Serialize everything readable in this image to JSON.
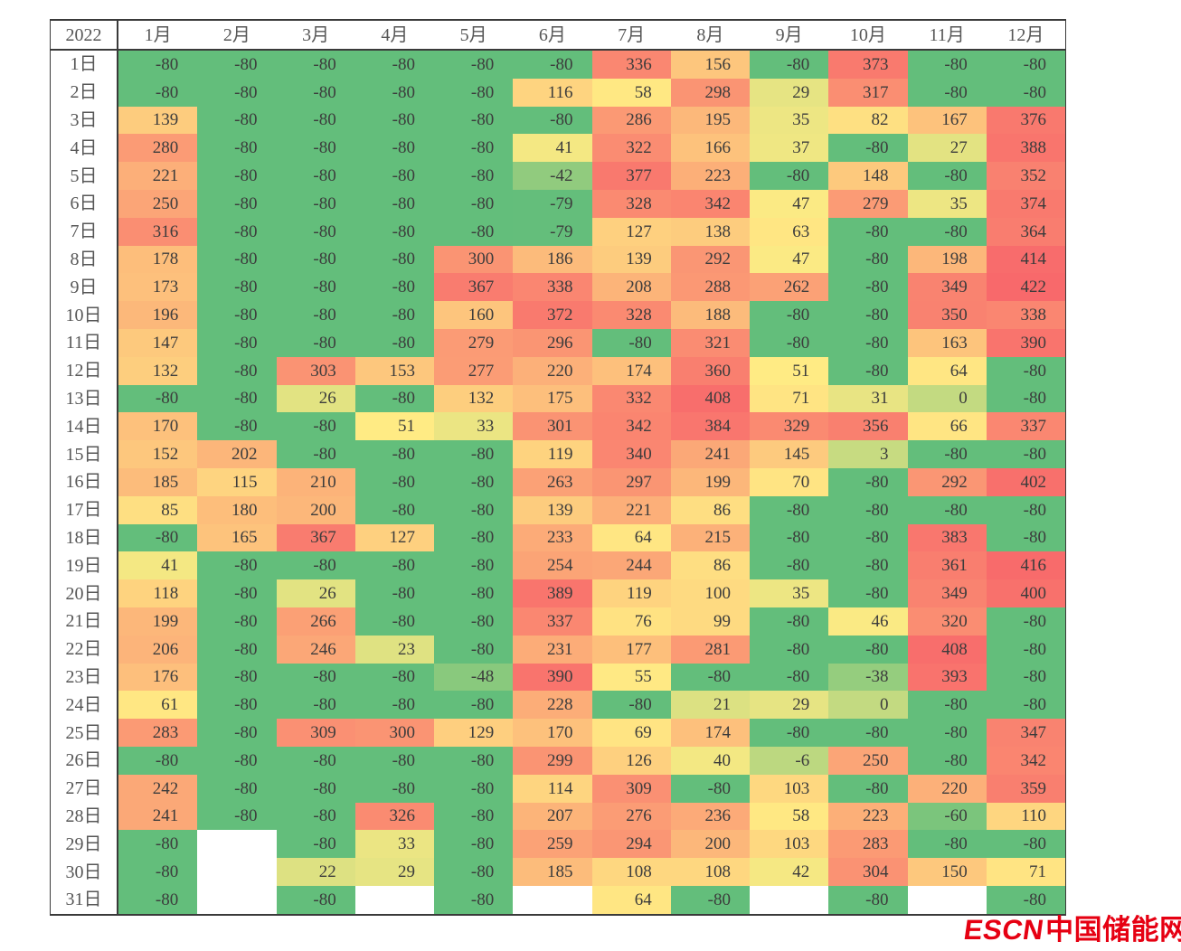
{
  "colors": {
    "scale_min_color": "#63be7b",
    "scale_mid_color": "#ffeb84",
    "scale_max_color": "#f8696b",
    "scale_min": -80,
    "scale_mid": 50,
    "scale_max": 422,
    "watermark_red": "#e60012",
    "grid_line": "#3a3a3a",
    "header_text": "#575757",
    "value_text": "#3c3c3c"
  },
  "watermark": {
    "latin": "ESCN",
    "cjk": "中国储能网"
  },
  "chart_data": {
    "type": "heatmap",
    "title": "2022",
    "legend": "none",
    "color_scale": {
      "min_value": -80,
      "min_color": "green",
      "mid_value": 50,
      "mid_color": "yellow",
      "max_value": 422,
      "max_color": "red"
    },
    "columns": [
      "1月",
      "2月",
      "3月",
      "4月",
      "5月",
      "6月",
      "7月",
      "8月",
      "9月",
      "10月",
      "11月",
      "12月"
    ],
    "rows": [
      "1日",
      "2日",
      "3日",
      "4日",
      "5日",
      "6日",
      "7日",
      "8日",
      "9日",
      "10日",
      "11日",
      "12日",
      "13日",
      "14日",
      "15日",
      "16日",
      "17日",
      "18日",
      "19日",
      "20日",
      "21日",
      "22日",
      "23日",
      "24日",
      "25日",
      "26日",
      "27日",
      "28日",
      "29日",
      "30日",
      "31日"
    ],
    "values": [
      [
        -80,
        -80,
        -80,
        -80,
        -80,
        -80,
        336,
        156,
        -80,
        373,
        -80,
        -80
      ],
      [
        -80,
        -80,
        -80,
        -80,
        -80,
        116,
        58,
        298,
        29,
        317,
        -80,
        -80
      ],
      [
        139,
        -80,
        -80,
        -80,
        -80,
        -80,
        286,
        195,
        35,
        82,
        167,
        376
      ],
      [
        280,
        -80,
        -80,
        -80,
        -80,
        41,
        322,
        166,
        37,
        -80,
        27,
        388
      ],
      [
        221,
        -80,
        -80,
        -80,
        -80,
        -42,
        377,
        223,
        -80,
        148,
        -80,
        352
      ],
      [
        250,
        -80,
        -80,
        -80,
        -80,
        -79,
        328,
        342,
        47,
        279,
        35,
        374
      ],
      [
        316,
        -80,
        -80,
        -80,
        -80,
        -79,
        127,
        138,
        63,
        -80,
        -80,
        364
      ],
      [
        178,
        -80,
        -80,
        -80,
        300,
        186,
        139,
        292,
        47,
        -80,
        198,
        414
      ],
      [
        173,
        -80,
        -80,
        -80,
        367,
        338,
        208,
        288,
        262,
        -80,
        349,
        422
      ],
      [
        196,
        -80,
        -80,
        -80,
        160,
        372,
        328,
        188,
        -80,
        -80,
        350,
        338
      ],
      [
        147,
        -80,
        -80,
        -80,
        279,
        296,
        -80,
        321,
        -80,
        -80,
        163,
        390
      ],
      [
        132,
        -80,
        303,
        153,
        277,
        220,
        174,
        360,
        51,
        -80,
        64,
        -80
      ],
      [
        -80,
        -80,
        26,
        -80,
        132,
        175,
        332,
        408,
        71,
        31,
        0,
        -80
      ],
      [
        170,
        -80,
        -80,
        51,
        33,
        301,
        342,
        384,
        329,
        356,
        66,
        337
      ],
      [
        152,
        202,
        -80,
        -80,
        -80,
        119,
        340,
        241,
        145,
        3,
        -80,
        -80
      ],
      [
        185,
        115,
        210,
        -80,
        -80,
        263,
        297,
        199,
        70,
        -80,
        292,
        402
      ],
      [
        85,
        180,
        200,
        -80,
        -80,
        139,
        221,
        86,
        -80,
        -80,
        -80,
        -80
      ],
      [
        -80,
        165,
        367,
        127,
        -80,
        233,
        64,
        215,
        -80,
        -80,
        383,
        -80
      ],
      [
        41,
        -80,
        -80,
        -80,
        -80,
        254,
        244,
        86,
        -80,
        -80,
        361,
        416
      ],
      [
        118,
        -80,
        26,
        -80,
        -80,
        389,
        119,
        100,
        35,
        -80,
        349,
        400
      ],
      [
        199,
        -80,
        266,
        -80,
        -80,
        337,
        76,
        99,
        -80,
        46,
        320,
        -80
      ],
      [
        206,
        -80,
        246,
        23,
        -80,
        231,
        177,
        281,
        -80,
        -80,
        408,
        -80
      ],
      [
        176,
        -80,
        -80,
        -80,
        -48,
        390,
        55,
        -80,
        -80,
        -38,
        393,
        -80
      ],
      [
        61,
        -80,
        -80,
        -80,
        -80,
        228,
        -80,
        21,
        29,
        0,
        -80,
        -80
      ],
      [
        283,
        -80,
        309,
        300,
        129,
        170,
        69,
        174,
        -80,
        -80,
        -80,
        347
      ],
      [
        -80,
        -80,
        -80,
        -80,
        -80,
        299,
        126,
        40,
        -6,
        250,
        -80,
        342
      ],
      [
        242,
        -80,
        -80,
        -80,
        -80,
        114,
        309,
        -80,
        103,
        -80,
        220,
        359
      ],
      [
        241,
        -80,
        -80,
        326,
        -80,
        207,
        276,
        236,
        58,
        223,
        -60,
        110
      ],
      [
        -80,
        null,
        -80,
        33,
        -80,
        259,
        294,
        200,
        103,
        283,
        -80,
        -80
      ],
      [
        -80,
        null,
        22,
        29,
        -80,
        185,
        108,
        108,
        42,
        304,
        150,
        71
      ],
      [
        -80,
        null,
        -80,
        null,
        -80,
        null,
        64,
        -80,
        null,
        -80,
        null,
        -80
      ]
    ]
  }
}
